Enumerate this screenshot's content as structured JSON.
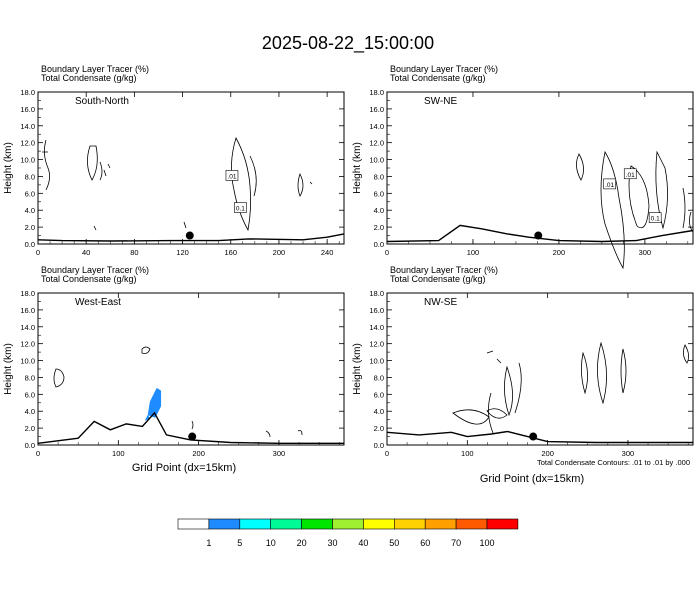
{
  "title": "2025-08-22_15:00:00",
  "panel_header": {
    "line1": "Boundary Layer Tracer   (%)",
    "line2": "Total Condensate   (g/kg)"
  },
  "ylabel": "Height (km)",
  "xlabel": "Grid Point (dx=15km)",
  "footnote": "Total Condensate Contours: .01 to .01 by .000",
  "chart_data": [
    {
      "type": "contour",
      "name": "South-North",
      "xticks": [
        0,
        40,
        80,
        120,
        160,
        200,
        240
      ],
      "xlim": [
        0,
        254
      ],
      "yticks": [
        "0.0",
        "2.0",
        "4.0",
        "6.0",
        "8.0",
        "10.0",
        "12.0",
        "14.0",
        "16.0",
        "18.0"
      ],
      "ylim": [
        0,
        18
      ],
      "marker": {
        "x": 126,
        "y": 1.0
      },
      "terrain": [
        [
          0,
          0.5
        ],
        [
          20,
          0.4
        ],
        [
          60,
          0.35
        ],
        [
          110,
          0.4
        ],
        [
          150,
          0.4
        ],
        [
          175,
          0.6
        ],
        [
          220,
          0.5
        ],
        [
          240,
          0.8
        ],
        [
          254,
          1.2
        ]
      ],
      "contour_labels": [
        {
          "text": ".01",
          "x": 161,
          "y": 8.0
        },
        {
          "text": "0.1",
          "x": 168,
          "y": 4.2
        }
      ],
      "blt_patches": []
    },
    {
      "type": "contour",
      "name": "SW-NE",
      "xticks": [
        0,
        100,
        200,
        300
      ],
      "xlim": [
        0,
        356
      ],
      "yticks": [
        "0.0",
        "2.0",
        "4.0",
        "6.0",
        "8.0",
        "10.0",
        "12.0",
        "14.0",
        "16.0",
        "18.0"
      ],
      "ylim": [
        0,
        18
      ],
      "marker": {
        "x": 176,
        "y": 1.0
      },
      "terrain": [
        [
          0,
          0.3
        ],
        [
          60,
          0.4
        ],
        [
          85,
          2.2
        ],
        [
          110,
          1.8
        ],
        [
          140,
          1.2
        ],
        [
          165,
          0.8
        ],
        [
          200,
          0.4
        ],
        [
          250,
          0.3
        ],
        [
          290,
          0.4
        ],
        [
          320,
          1.0
        ],
        [
          356,
          1.6
        ]
      ],
      "contour_labels": [
        {
          "text": ".01",
          "x": 259,
          "y": 7.0
        },
        {
          "text": ".01",
          "x": 283,
          "y": 8.2
        },
        {
          "text": "0.1",
          "x": 312,
          "y": 3.0
        }
      ],
      "blt_patches": []
    },
    {
      "type": "contour",
      "name": "West-East",
      "xticks": [
        0,
        100,
        200,
        300
      ],
      "xlim": [
        0,
        381
      ],
      "yticks": [
        "0.0",
        "2.0",
        "4.0",
        "6.0",
        "8.0",
        "10.0",
        "12.0",
        "14.0",
        "16.0",
        "18.0"
      ],
      "ylim": [
        0,
        18
      ],
      "marker": {
        "x": 192,
        "y": 1.0
      },
      "terrain": [
        [
          0,
          0.2
        ],
        [
          50,
          0.8
        ],
        [
          70,
          2.8
        ],
        [
          90,
          1.8
        ],
        [
          110,
          2.5
        ],
        [
          130,
          2.2
        ],
        [
          145,
          3.8
        ],
        [
          160,
          1.2
        ],
        [
          190,
          0.6
        ],
        [
          240,
          0.3
        ],
        [
          300,
          0.2
        ],
        [
          381,
          0.2
        ]
      ],
      "contour_labels": [],
      "blt_patches": [
        {
          "x": [
            138,
            152
          ],
          "y": [
            3.6,
            6.6
          ],
          "level": "1-5"
        }
      ]
    },
    {
      "type": "contour",
      "name": "NW-SE",
      "xticks": [
        0,
        100,
        200,
        300
      ],
      "xlim": [
        0,
        381
      ],
      "yticks": [
        "0.0",
        "2.0",
        "4.0",
        "6.0",
        "8.0",
        "10.0",
        "12.0",
        "14.0",
        "16.0",
        "18.0"
      ],
      "ylim": [
        0,
        18
      ],
      "marker": {
        "x": 182,
        "y": 1.0
      },
      "terrain": [
        [
          0,
          1.5
        ],
        [
          40,
          1.2
        ],
        [
          80,
          1.5
        ],
        [
          100,
          1.0
        ],
        [
          130,
          1.3
        ],
        [
          150,
          1.6
        ],
        [
          175,
          1.0
        ],
        [
          200,
          0.4
        ],
        [
          260,
          0.3
        ],
        [
          381,
          0.3
        ]
      ],
      "contour_labels": [],
      "blt_patches": []
    }
  ],
  "colorbar": {
    "colors": [
      "#ffffff",
      "#1e8cff",
      "#00ffff",
      "#00fa96",
      "#00e600",
      "#a0f032",
      "#ffff00",
      "#ffd200",
      "#ffa000",
      "#ff5a00",
      "#ff0000"
    ],
    "labels": [
      "1",
      "5",
      "10",
      "20",
      "30",
      "40",
      "50",
      "60",
      "70",
      "100"
    ]
  }
}
